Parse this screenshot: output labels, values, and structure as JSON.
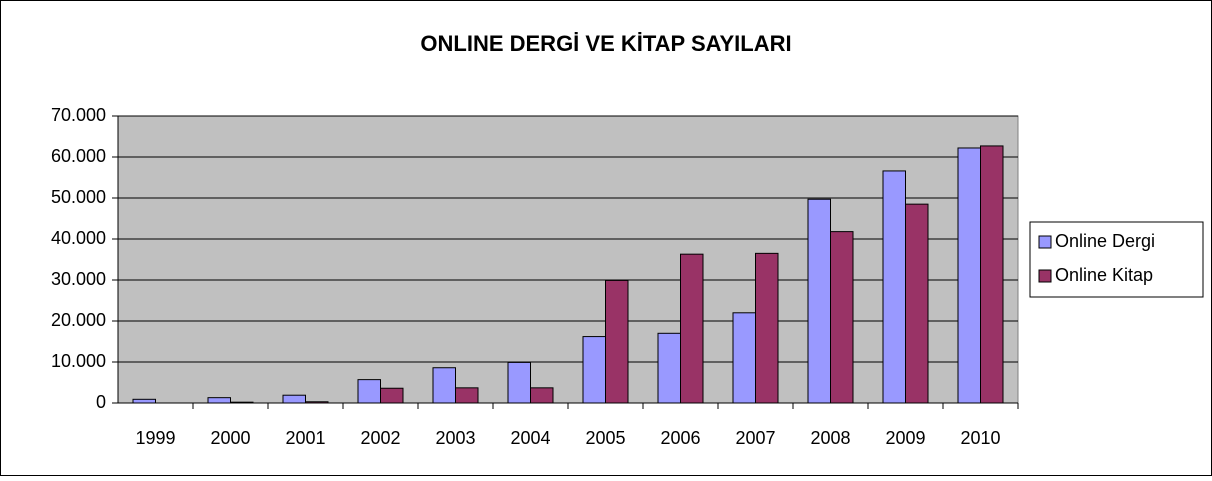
{
  "chart_data": {
    "type": "bar",
    "title": "ONLINE DERGİ VE KİTAP SAYILARI",
    "categories": [
      "1999",
      "2000",
      "2001",
      "2002",
      "2003",
      "2004",
      "2005",
      "2006",
      "2007",
      "2008",
      "2009",
      "2010"
    ],
    "series": [
      {
        "name": "Online Dergi",
        "color": "#9999ff",
        "values": [
          900,
          1300,
          1900,
          5700,
          8600,
          9900,
          16200,
          17000,
          22000,
          49700,
          56600,
          62200
        ]
      },
      {
        "name": "Online Kitap",
        "color": "#993366",
        "values": [
          0,
          200,
          300,
          3600,
          3700,
          3700,
          29900,
          36300,
          36500,
          41800,
          48500,
          62700
        ]
      }
    ],
    "ylim": [
      0,
      70000
    ],
    "yticks": [
      0,
      {
        "value": 10000,
        "label": "10.000"
      },
      {
        "value": 20000,
        "label": "20.000"
      },
      {
        "value": 30000,
        "label": "30.000"
      },
      {
        "value": 40000,
        "label": "40.000"
      },
      {
        "value": 50000,
        "label": "50.000"
      },
      {
        "value": 60000,
        "label": "60.000"
      },
      {
        "value": 70000,
        "label": "70.000"
      }
    ],
    "grid": true,
    "legend": "right",
    "plot_background": "#c0c0c0"
  }
}
